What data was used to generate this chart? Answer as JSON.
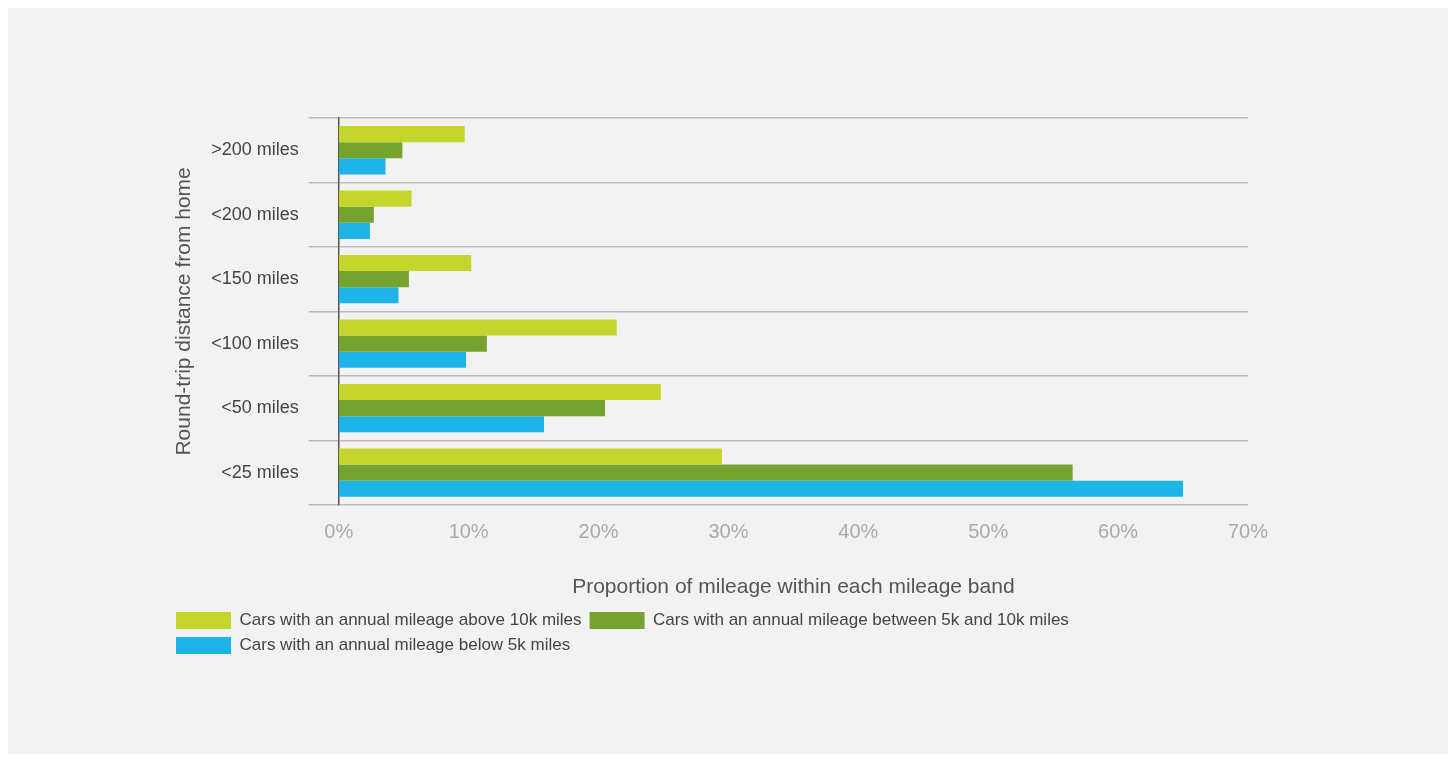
{
  "chart_data": {
    "type": "bar",
    "orientation": "horizontal",
    "xlabel": "Proportion of mileage within each mileage band",
    "ylabel": "Round-trip distance from home",
    "categories": [
      ">200 miles",
      "<200 miles",
      "<150 miles",
      "<100 miles",
      "<50 miles",
      "<25 miles"
    ],
    "series": [
      {
        "name": "Cars with an annual mileage above 10k miles",
        "color": "#c4d52b",
        "values": [
          9.7,
          5.6,
          10.2,
          21.4,
          24.8,
          29.5
        ]
      },
      {
        "name": "Cars with an annual mileage between 5k and 10k miles",
        "color": "#76a22f",
        "values": [
          4.9,
          2.7,
          5.4,
          11.4,
          20.5,
          56.5
        ]
      },
      {
        "name": "Cars with an annual mileage below 5k miles",
        "color": "#1fb4e8",
        "values": [
          3.6,
          2.4,
          4.6,
          9.8,
          15.8,
          65
        ]
      }
    ],
    "xlim": [
      0,
      70
    ],
    "xticks": [
      {
        "value": 0,
        "label": "0%"
      },
      {
        "value": 10,
        "label": "10%"
      },
      {
        "value": 20,
        "label": "20%"
      },
      {
        "value": 30,
        "label": "30%"
      },
      {
        "value": 40,
        "label": "40%"
      },
      {
        "value": 50,
        "label": "50%"
      },
      {
        "value": 60,
        "label": "60%"
      },
      {
        "value": 70,
        "label": "70%"
      }
    ],
    "grid": "y",
    "legend": "bottom left"
  }
}
